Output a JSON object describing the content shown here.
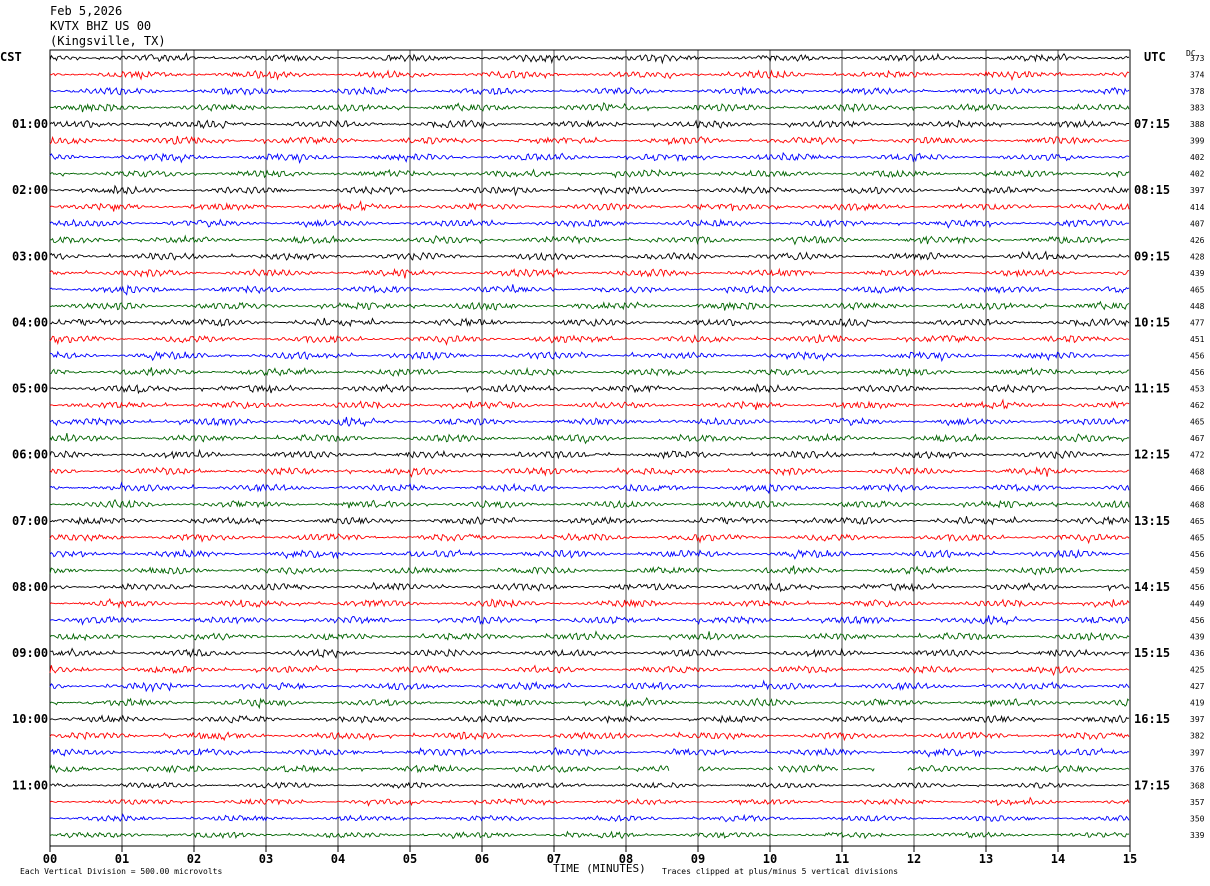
{
  "header": {
    "date": "Feb 5,2026",
    "station": "KVTX BHZ US 00",
    "location": "(Kingsville, TX)"
  },
  "axes": {
    "left_tz": "CST",
    "right_tz": "UTC",
    "dc_label": "DC"
  },
  "footer": {
    "scale_note": "Each Vertical Division =  500.00 microvolts",
    "xlabel": "TIME (MINUTES)",
    "clip_note": "Traces clipped at plus/minus 5 vertical divisions"
  },
  "chart_data": {
    "type": "line",
    "title": "KVTX BHZ US 00",
    "xlabel": "TIME (MINUTES)",
    "xlim": [
      0,
      15
    ],
    "x_ticks": [
      "00",
      "01",
      "02",
      "03",
      "04",
      "05",
      "06",
      "07",
      "08",
      "09",
      "10",
      "11",
      "12",
      "13",
      "14",
      "15"
    ],
    "trace_colors": [
      "#000000",
      "#ff0000",
      "#0000ff",
      "#006400"
    ],
    "left_time_labels": [
      "01:00",
      "02:00",
      "03:00",
      "04:00",
      "05:00",
      "06:00",
      "07:00",
      "08:00",
      "09:00",
      "10:00",
      "11:00"
    ],
    "right_time_labels": [
      "07:15",
      "08:15",
      "09:15",
      "10:15",
      "11:15",
      "12:15",
      "13:15",
      "14:15",
      "15:15",
      "16:15",
      "17:15"
    ],
    "dc_offsets": [
      "373",
      "374",
      "378",
      "383",
      "388",
      "399",
      "402",
      "402",
      "397",
      "414",
      "407",
      "426",
      "428",
      "439",
      "465",
      "448",
      "477",
      "451",
      "456",
      "456",
      "453",
      "462",
      "465",
      "467",
      "472",
      "468",
      "466",
      "468",
      "465",
      "465",
      "456",
      "459",
      "456",
      "449",
      "456",
      "439",
      "436",
      "425",
      "427",
      "419",
      "397",
      "382",
      "397",
      "376",
      "368",
      "357",
      "350",
      "339"
    ],
    "gaps_row": 43,
    "gaps_minutes": [
      [
        8.6,
        9.0
      ],
      [
        10.05,
        10.1
      ],
      [
        10.95,
        11.0
      ],
      [
        11.45,
        11.9
      ]
    ]
  }
}
